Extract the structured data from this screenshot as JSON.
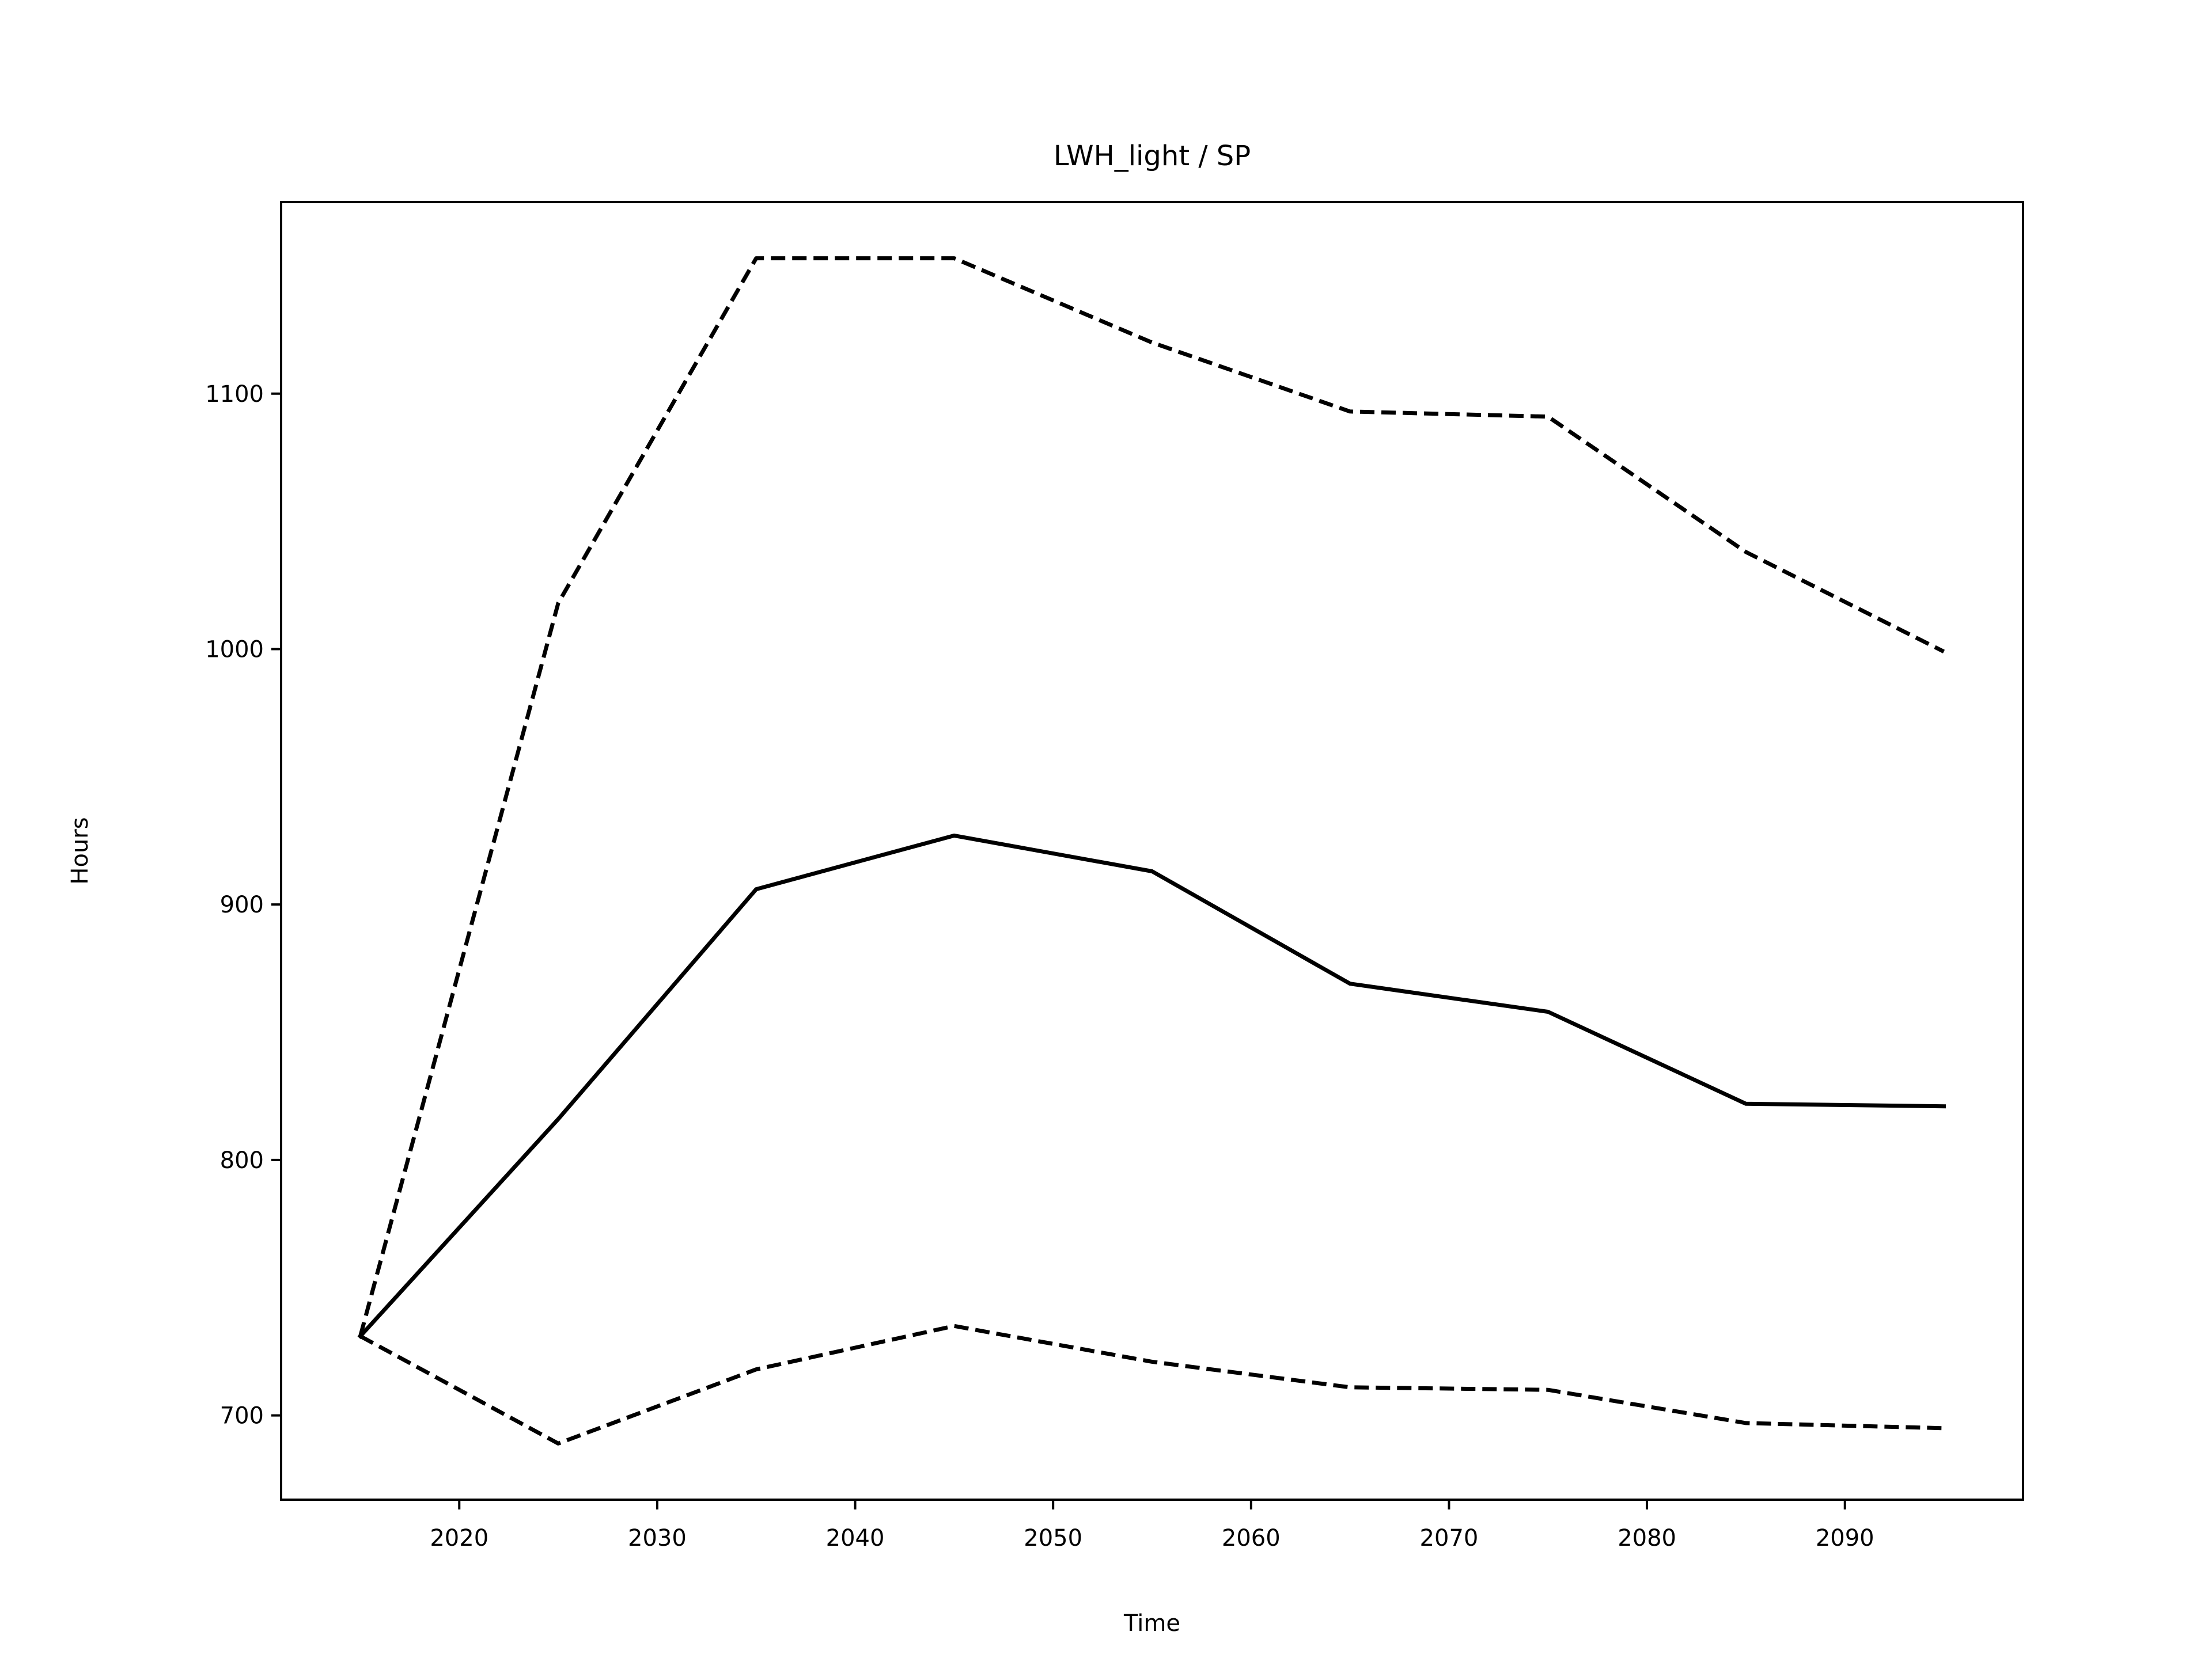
{
  "chart_data": {
    "type": "line",
    "title": "LWH_light / SP",
    "xlabel": "Time",
    "ylabel": "Hours",
    "xlim": [
      2011,
      2099
    ],
    "ylim": [
      667,
      1175
    ],
    "xticks": [
      2020,
      2030,
      2040,
      2050,
      2060,
      2070,
      2080,
      2090
    ],
    "yticks": [
      700,
      800,
      900,
      1000,
      1100
    ],
    "grid": false,
    "legend": "none",
    "x": [
      2015,
      2025,
      2035,
      2045,
      2055,
      2065,
      2075,
      2085,
      2095
    ],
    "series": [
      {
        "style": "solid",
        "color": "#000000",
        "values": [
          731,
          816,
          906,
          927,
          913,
          869,
          858,
          822,
          821
        ]
      },
      {
        "style": "dashed",
        "color": "#000000",
        "values": [
          731,
          1018,
          1153,
          1153,
          1120,
          1093,
          1091,
          1038,
          999
        ]
      },
      {
        "style": "dashed",
        "color": "#000000",
        "values": [
          731,
          689,
          718,
          735,
          721,
          711,
          710,
          697,
          695
        ]
      }
    ]
  }
}
